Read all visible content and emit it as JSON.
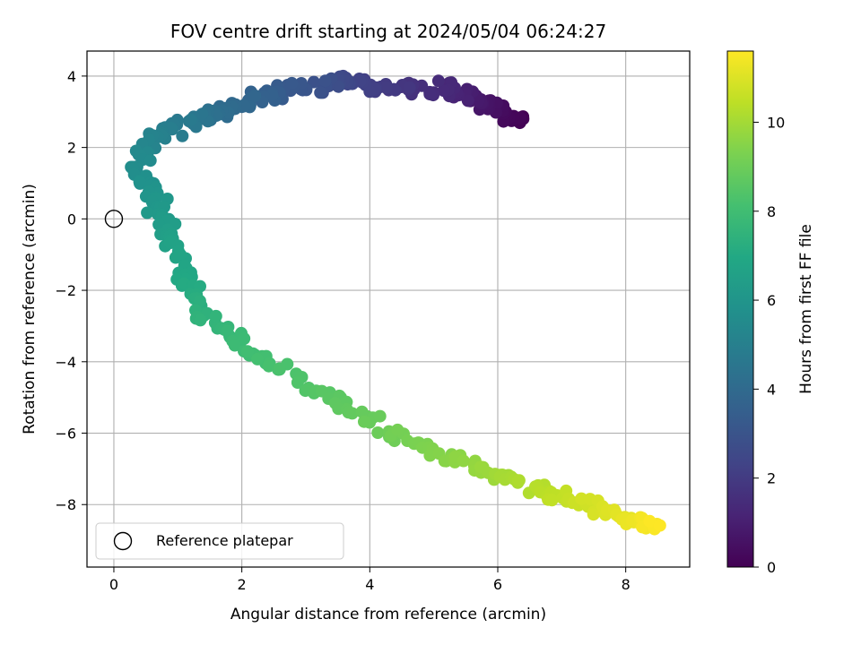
{
  "chart_data": {
    "type": "scatter",
    "title": "FOV centre drift starting at 2024/05/04 06:24:27",
    "xlabel": "Angular distance from reference (arcmin)",
    "ylabel": "Rotation from reference (arcmin)",
    "xlim": [
      -0.42,
      9.0
    ],
    "ylim": [
      -9.75,
      4.7
    ],
    "xticks": [
      0,
      2,
      4,
      6,
      8
    ],
    "yticks": [
      -8,
      -6,
      -4,
      -2,
      0,
      2,
      4
    ],
    "grid": true,
    "colormap": "viridis",
    "colorbar": {
      "label": "Hours from first FF file",
      "range": [
        0,
        11.6
      ],
      "ticks": [
        0,
        2,
        4,
        6,
        8,
        10
      ]
    },
    "legend": {
      "location": "lower-left",
      "entries": [
        "Reference platepar"
      ]
    },
    "reference_point": {
      "x": 0,
      "y": 0
    },
    "path_keypoints": [
      {
        "t": 0.0,
        "x": 6.38,
        "y": 2.7
      },
      {
        "t": 0.6,
        "x": 5.85,
        "y": 3.2
      },
      {
        "t": 1.3,
        "x": 5.2,
        "y": 3.65
      },
      {
        "t": 2.0,
        "x": 4.2,
        "y": 3.7
      },
      {
        "t": 2.7,
        "x": 3.4,
        "y": 3.8
      },
      {
        "t": 3.4,
        "x": 2.5,
        "y": 3.6
      },
      {
        "t": 4.1,
        "x": 1.7,
        "y": 3.0
      },
      {
        "t": 4.7,
        "x": 1.1,
        "y": 2.7
      },
      {
        "t": 5.2,
        "x": 0.55,
        "y": 2.2
      },
      {
        "t": 5.6,
        "x": 0.35,
        "y": 1.4
      },
      {
        "t": 6.0,
        "x": 0.6,
        "y": 0.6
      },
      {
        "t": 6.5,
        "x": 0.9,
        "y": -0.4
      },
      {
        "t": 7.0,
        "x": 1.15,
        "y": -1.8
      },
      {
        "t": 7.5,
        "x": 1.45,
        "y": -2.8
      },
      {
        "t": 8.0,
        "x": 2.2,
        "y": -3.8
      },
      {
        "t": 8.5,
        "x": 3.2,
        "y": -4.8
      },
      {
        "t": 9.0,
        "x": 4.2,
        "y": -5.9
      },
      {
        "t": 9.6,
        "x": 5.4,
        "y": -6.8
      },
      {
        "t": 10.3,
        "x": 6.6,
        "y": -7.6
      },
      {
        "t": 11.0,
        "x": 7.7,
        "y": -8.2
      },
      {
        "t": 11.6,
        "x": 8.5,
        "y": -8.7
      }
    ],
    "n_points": 460
  }
}
